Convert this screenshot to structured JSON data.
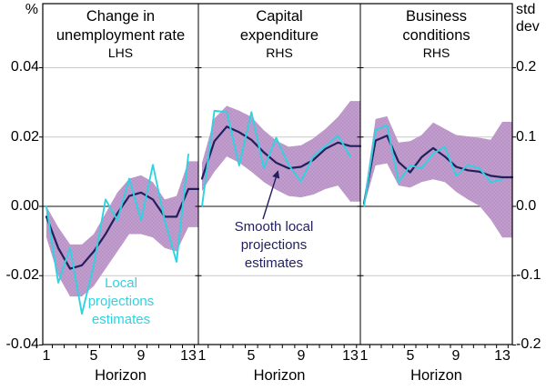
{
  "labels": {
    "left_axis_unit": "%",
    "right_axis_unit_line1": "std",
    "right_axis_unit_line2": "dev",
    "left_ticks": [
      "0.04",
      "0.02",
      "0.00",
      "-0.02",
      "-0.04"
    ],
    "right_ticks": [
      "0.2",
      "0.1",
      "0.0",
      "-0.1",
      "-0.2"
    ],
    "x_ticks": [
      "1",
      "5",
      "9",
      "13"
    ],
    "x_axis_title": "Horizon"
  },
  "annotations": {
    "local_projections": {
      "lines": [
        "Local",
        "projections",
        "estimates"
      ]
    },
    "smooth_local_projections": {
      "lines": [
        "Smooth local",
        "projections",
        "estimates"
      ]
    }
  },
  "chart_data": {
    "type": "line",
    "axes": {
      "left": {
        "unit": "%",
        "tick_values": [
          0.04,
          0.02,
          0.0,
          -0.02,
          -0.04
        ],
        "side_note": "LHS"
      },
      "right": {
        "unit": "std dev",
        "tick_values": [
          0.2,
          0.1,
          0.0,
          -0.1,
          -0.2
        ],
        "side_note": "RHS"
      },
      "x": {
        "title": "Horizon",
        "tick_values": [
          1,
          5,
          9,
          13
        ],
        "range": [
          1,
          13
        ]
      },
      "grid": "horizontal"
    },
    "colors": {
      "local": "#2ED3E2",
      "smooth": "#221F5E",
      "band": "#C19CCC",
      "band_dot": "#AF8ABD",
      "grid": "#C9C9C9",
      "zero_line": "#404040",
      "axis": "#000000"
    },
    "panels": [
      {
        "title_lines": [
          "Change in",
          "unemployment rate",
          "LHS"
        ],
        "axis": "left",
        "x": [
          1,
          2,
          3,
          4,
          5,
          6,
          7,
          8,
          9,
          10,
          11,
          12,
          13
        ],
        "series": [
          {
            "name": "Local projections estimates",
            "values": [
              0.0,
              -0.022,
              -0.012,
              -0.031,
              -0.017,
              0.002,
              -0.004,
              0.008,
              -0.004,
              0.012,
              -0.004,
              -0.016,
              0.015
            ]
          },
          {
            "name": "Smooth local projections estimates",
            "values": [
              -0.003,
              -0.012,
              -0.018,
              -0.017,
              -0.013,
              -0.008,
              -0.002,
              0.003,
              0.004,
              0.002,
              -0.003,
              -0.003,
              0.005
            ]
          }
        ],
        "band": {
          "upper": [
            0.0,
            -0.006,
            -0.011,
            -0.011,
            -0.008,
            -0.002,
            0.004,
            0.008,
            0.009,
            0.007,
            0.002,
            0.003,
            0.013
          ],
          "lower": [
            -0.009,
            -0.02,
            -0.026,
            -0.026,
            -0.023,
            -0.018,
            -0.013,
            -0.008,
            -0.008,
            -0.009,
            -0.012,
            -0.013,
            -0.006
          ]
        }
      },
      {
        "title_lines": [
          "Capital",
          "expenditure",
          "RHS"
        ],
        "axis": "right",
        "x": [
          1,
          2,
          3,
          4,
          5,
          6,
          7,
          8,
          9,
          10,
          11,
          12,
          13
        ],
        "series": [
          {
            "name": "Local projections estimates",
            "values": [
              0.0,
              0.138,
              0.136,
              0.059,
              0.136,
              0.055,
              0.099,
              0.06,
              0.036,
              0.072,
              0.087,
              0.102,
              0.072
            ]
          },
          {
            "name": "Smooth local projections estimates",
            "values": [
              0.04,
              0.094,
              0.115,
              0.107,
              0.096,
              0.078,
              0.063,
              0.055,
              0.057,
              0.067,
              0.083,
              0.092,
              0.087
            ]
          }
        ],
        "band": {
          "upper": [
            0.063,
            0.127,
            0.145,
            0.138,
            0.129,
            0.11,
            0.095,
            0.086,
            0.088,
            0.098,
            0.112,
            0.129,
            0.152
          ],
          "lower": [
            0.022,
            0.05,
            0.072,
            0.063,
            0.05,
            0.035,
            0.024,
            0.015,
            0.013,
            0.017,
            0.025,
            0.03,
            0.007
          ]
        }
      },
      {
        "title_lines": [
          "Business",
          "conditions",
          "RHS"
        ],
        "axis": "right",
        "x": [
          1,
          2,
          3,
          4,
          5,
          6,
          7,
          8,
          9,
          10,
          11,
          12,
          13
        ],
        "series": [
          {
            "name": "Local projections estimates",
            "values": [
              0.0,
              0.11,
              0.117,
              0.035,
              0.059,
              0.055,
              0.076,
              0.086,
              0.044,
              0.06,
              0.055,
              0.035,
              0.039
            ]
          },
          {
            "name": "Smooth local projections estimates",
            "values": [
              0.004,
              0.095,
              0.102,
              0.064,
              0.049,
              0.071,
              0.084,
              0.072,
              0.057,
              0.052,
              0.05,
              0.044,
              0.042
            ]
          }
        ],
        "band": {
          "upper": [
            0.01,
            0.126,
            0.13,
            0.092,
            0.094,
            0.103,
            0.121,
            0.112,
            0.103,
            0.101,
            0.099,
            0.096,
            0.122
          ],
          "lower": [
            0.0,
            0.059,
            0.062,
            0.03,
            0.027,
            0.035,
            0.039,
            0.035,
            0.021,
            0.01,
            0.001,
            -0.019,
            -0.045
          ]
        }
      }
    ]
  }
}
